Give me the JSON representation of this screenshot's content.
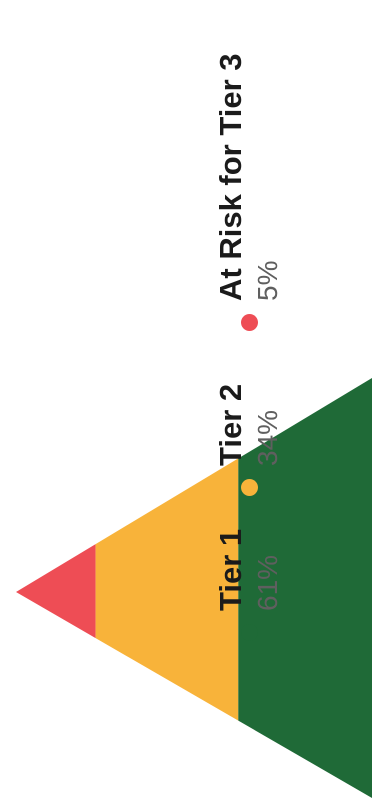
{
  "chart_data": {
    "type": "pyramid",
    "segments": [
      {
        "label": "At Risk for Tier 3",
        "value": 5,
        "value_label": "5%",
        "color": "#ee4d55"
      },
      {
        "label": "Tier 2",
        "value": 34,
        "value_label": "34%",
        "color": "#f8b33a"
      },
      {
        "label": "Tier 1",
        "value": 61,
        "value_label": "61%",
        "color": "#1f6a37"
      }
    ],
    "orientation": "rotated-90-ccw"
  }
}
